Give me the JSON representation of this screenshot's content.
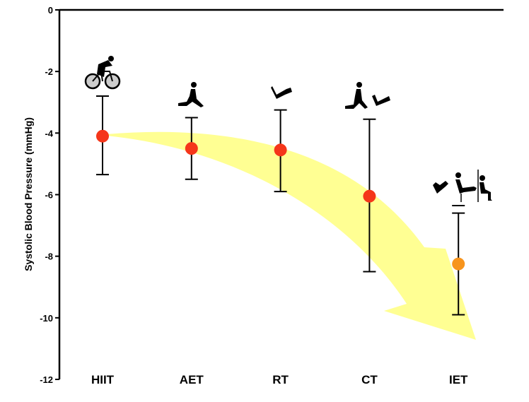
{
  "chart_data": {
    "type": "scatter",
    "title": "",
    "xlabel": "",
    "ylabel": "Systolic Blood Pressure (mmHg)",
    "ylim": [
      -12,
      0
    ],
    "yticks": [
      0,
      -2,
      -4,
      -6,
      -8,
      -10,
      -12
    ],
    "grid": false,
    "categories": [
      "HIIT",
      "AET",
      "RT",
      "CT",
      "IET"
    ],
    "points": [
      {
        "category": "HIIT",
        "mean": -4.1,
        "upper": -2.8,
        "lower": -5.35,
        "color": "#f5361a",
        "icon": "cycling-icon"
      },
      {
        "category": "AET",
        "mean": -4.5,
        "upper": -3.5,
        "lower": -5.5,
        "color": "#f5361a",
        "icon": "running-icon"
      },
      {
        "category": "RT",
        "mean": -4.55,
        "upper": -3.25,
        "lower": -5.9,
        "color": "#f5361a",
        "icon": "arm-curl-icon"
      },
      {
        "category": "CT",
        "mean": -6.05,
        "upper": -3.55,
        "lower": -8.5,
        "color": "#f5361a",
        "icon": "running-and-curl-icon"
      },
      {
        "category": "IET",
        "mean": -8.25,
        "upper": -6.6,
        "lower": -9.9,
        "color": "#f7941d",
        "icon": "isometric-exercises-icon"
      }
    ],
    "annotation": {
      "type": "trend-arrow",
      "color": "#ffff66"
    }
  }
}
